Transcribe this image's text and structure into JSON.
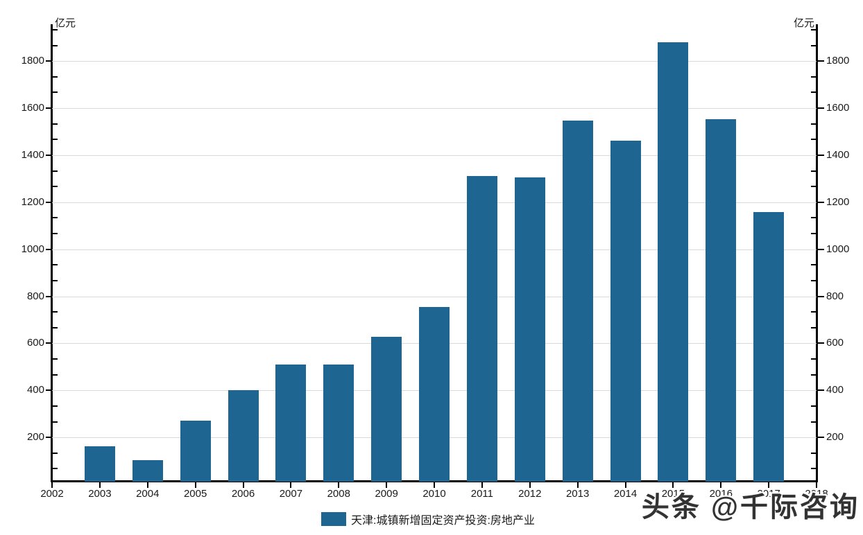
{
  "watermark": "头条 @千际咨询",
  "legend": {
    "label": "天津:城镇新增固定资产投资:房地产业",
    "swatch_color": "#1f6591"
  },
  "axes": {
    "left_unit_label": "亿元",
    "right_unit_label": "亿元"
  },
  "colors": {
    "bar": "#1f6591",
    "gridline": "#d9d9d9",
    "axis": "#000000",
    "text": "#1a1a1a"
  },
  "chart_data": {
    "type": "bar",
    "title": "",
    "xlabel": "",
    "ylabel": "亿元",
    "legend_entries": [
      "天津:城镇新增固定资产投资:房地产业"
    ],
    "legend_position": "bottom",
    "grid": true,
    "categories": [
      "2003",
      "2004",
      "2005",
      "2006",
      "2007",
      "2008",
      "2009",
      "2010",
      "2011",
      "2012",
      "2013",
      "2014",
      "2015",
      "2016",
      "2017"
    ],
    "values": [
      161,
      103,
      270,
      401,
      509,
      510,
      627,
      754,
      1310,
      1304,
      1547,
      1461,
      1879,
      1554,
      1157
    ],
    "x_ticks": [
      "2002",
      "2003",
      "2004",
      "2005",
      "2006",
      "2007",
      "2008",
      "2009",
      "2010",
      "2011",
      "2012",
      "2013",
      "2014",
      "2015",
      "2016",
      "2017",
      "2018"
    ],
    "y_axis": {
      "min": 0,
      "max": 1956,
      "major_tick_step": 200,
      "minor_ticks_per_major": 2,
      "tick_labels": [
        "200",
        "400",
        "600",
        "800",
        "1000",
        "1200",
        "1400",
        "1600",
        "1800"
      ],
      "dual_axis": true
    },
    "ylim": [
      0,
      1956
    ],
    "bar_color": "#1f6591"
  }
}
